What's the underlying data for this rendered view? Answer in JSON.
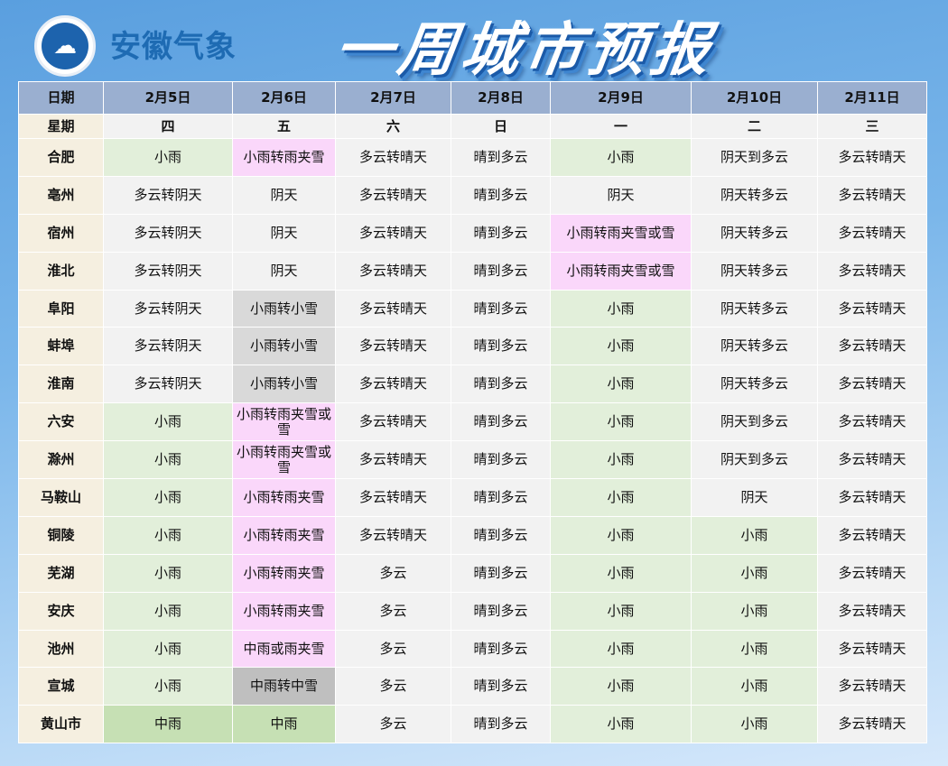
{
  "header": {
    "brand": "安徽气象",
    "title": "一周城市预报",
    "logo_icon": "cloud-swirl-logo"
  },
  "colors": {
    "g": "#e2efda",
    "p": "#fad7fa",
    "s": "#d9d9d9",
    "d": "#bfbfbf",
    "G": "#c6e0b4",
    "default": "#f2f2f2",
    "header": "#9aafd0"
  },
  "table": {
    "date_label": "日期",
    "weekday_label": "星期",
    "dates": [
      "2月5日",
      "2月6日",
      "2月7日",
      "2月8日",
      "2月9日",
      "2月10日",
      "2月11日"
    ],
    "weekdays": [
      "四",
      "五",
      "六",
      "日",
      "一",
      "二",
      "三"
    ],
    "rows": [
      {
        "city": "合肥",
        "cells": [
          "小雨",
          "小雨转雨夹雪",
          "多云转晴天",
          "晴到多云",
          "小雨",
          "阴天到多云",
          "多云转晴天"
        ],
        "shade": [
          "g",
          "p",
          "",
          "",
          "g",
          "",
          ""
        ]
      },
      {
        "city": "亳州",
        "cells": [
          "多云转阴天",
          "阴天",
          "多云转晴天",
          "晴到多云",
          "阴天",
          "阴天转多云",
          "多云转晴天"
        ],
        "shade": [
          "",
          "",
          "",
          "",
          "",
          "",
          ""
        ]
      },
      {
        "city": "宿州",
        "cells": [
          "多云转阴天",
          "阴天",
          "多云转晴天",
          "晴到多云",
          "小雨转雨夹雪或雪",
          "阴天转多云",
          "多云转晴天"
        ],
        "shade": [
          "",
          "",
          "",
          "",
          "p",
          "",
          ""
        ]
      },
      {
        "city": "淮北",
        "cells": [
          "多云转阴天",
          "阴天",
          "多云转晴天",
          "晴到多云",
          "小雨转雨夹雪或雪",
          "阴天转多云",
          "多云转晴天"
        ],
        "shade": [
          "",
          "",
          "",
          "",
          "p",
          "",
          ""
        ]
      },
      {
        "city": "阜阳",
        "cells": [
          "多云转阴天",
          "小雨转小雪",
          "多云转晴天",
          "晴到多云",
          "小雨",
          "阴天转多云",
          "多云转晴天"
        ],
        "shade": [
          "",
          "s",
          "",
          "",
          "g",
          "",
          ""
        ]
      },
      {
        "city": "蚌埠",
        "cells": [
          "多云转阴天",
          "小雨转小雪",
          "多云转晴天",
          "晴到多云",
          "小雨",
          "阴天转多云",
          "多云转晴天"
        ],
        "shade": [
          "",
          "s",
          "",
          "",
          "g",
          "",
          ""
        ]
      },
      {
        "city": "淮南",
        "cells": [
          "多云转阴天",
          "小雨转小雪",
          "多云转晴天",
          "晴到多云",
          "小雨",
          "阴天转多云",
          "多云转晴天"
        ],
        "shade": [
          "",
          "s",
          "",
          "",
          "g",
          "",
          ""
        ]
      },
      {
        "city": "六安",
        "cells": [
          "小雨",
          "小雨转雨夹雪或雪",
          "多云转晴天",
          "晴到多云",
          "小雨",
          "阴天到多云",
          "多云转晴天"
        ],
        "shade": [
          "g",
          "p",
          "",
          "",
          "g",
          "",
          ""
        ]
      },
      {
        "city": "滁州",
        "cells": [
          "小雨",
          "小雨转雨夹雪或雪",
          "多云转晴天",
          "晴到多云",
          "小雨",
          "阴天到多云",
          "多云转晴天"
        ],
        "shade": [
          "g",
          "p",
          "",
          "",
          "g",
          "",
          ""
        ]
      },
      {
        "city": "马鞍山",
        "cells": [
          "小雨",
          "小雨转雨夹雪",
          "多云转晴天",
          "晴到多云",
          "小雨",
          "阴天",
          "多云转晴天"
        ],
        "shade": [
          "g",
          "p",
          "",
          "",
          "g",
          "",
          ""
        ]
      },
      {
        "city": "铜陵",
        "cells": [
          "小雨",
          "小雨转雨夹雪",
          "多云转晴天",
          "晴到多云",
          "小雨",
          "小雨",
          "多云转晴天"
        ],
        "shade": [
          "g",
          "p",
          "",
          "",
          "g",
          "g",
          ""
        ]
      },
      {
        "city": "芜湖",
        "cells": [
          "小雨",
          "小雨转雨夹雪",
          "多云",
          "晴到多云",
          "小雨",
          "小雨",
          "多云转晴天"
        ],
        "shade": [
          "g",
          "p",
          "",
          "",
          "g",
          "g",
          ""
        ]
      },
      {
        "city": "安庆",
        "cells": [
          "小雨",
          "小雨转雨夹雪",
          "多云",
          "晴到多云",
          "小雨",
          "小雨",
          "多云转晴天"
        ],
        "shade": [
          "g",
          "p",
          "",
          "",
          "g",
          "g",
          ""
        ]
      },
      {
        "city": "池州",
        "cells": [
          "小雨",
          "中雨或雨夹雪",
          "多云",
          "晴到多云",
          "小雨",
          "小雨",
          "多云转晴天"
        ],
        "shade": [
          "g",
          "p",
          "",
          "",
          "g",
          "g",
          ""
        ]
      },
      {
        "city": "宣城",
        "cells": [
          "小雨",
          "中雨转中雪",
          "多云",
          "晴到多云",
          "小雨",
          "小雨",
          "多云转晴天"
        ],
        "shade": [
          "g",
          "d",
          "",
          "",
          "g",
          "g",
          ""
        ]
      },
      {
        "city": "黄山市",
        "cells": [
          "中雨",
          "中雨",
          "多云",
          "晴到多云",
          "小雨",
          "小雨",
          "多云转晴天"
        ],
        "shade": [
          "G",
          "G",
          "",
          "",
          "g",
          "g",
          ""
        ]
      }
    ]
  }
}
